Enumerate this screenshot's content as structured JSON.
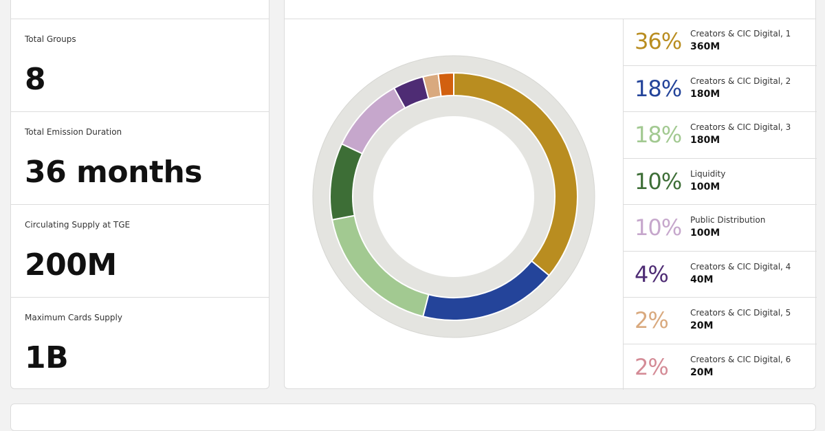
{
  "stats": [
    {
      "label": "Total Groups",
      "value": "8"
    },
    {
      "label": "Total Emission Duration",
      "value": "36 months"
    },
    {
      "label": "Circulating Supply at TGE",
      "value": "200M"
    },
    {
      "label": "Maximum Cards Supply",
      "value": "1B"
    }
  ],
  "chart_data": {
    "type": "pie",
    "categories": [
      "Creators & CIC Digital, 1",
      "Creators & CIC Digital, 2",
      "Creators & CIC Digital, 3",
      "Liquidity",
      "Public Distribution",
      "Creators & CIC Digital, 4",
      "Creators & CIC Digital, 5",
      "Creators & CIC Digital, 6"
    ],
    "values": [
      36,
      18,
      18,
      10,
      10,
      4,
      2,
      2
    ],
    "value_labels": [
      "36%",
      "18%",
      "18%",
      "10%",
      "10%",
      "4%",
      "2%",
      "2%"
    ],
    "amounts": [
      "360M",
      "180M",
      "180M",
      "100M",
      "100M",
      "40M",
      "20M",
      "20M"
    ],
    "colors": [
      "#b98d20",
      "#24449a",
      "#a2c991",
      "#3d6e36",
      "#c6a7cc",
      "#4e2c74",
      "#d9a97e",
      "#d2600f"
    ],
    "label_colors": [
      "#b98d20",
      "#24449a",
      "#a2c991",
      "#3d6e36",
      "#c6a7cc",
      "#4e2c74",
      "#d9a97e",
      "#d48b96"
    ]
  }
}
